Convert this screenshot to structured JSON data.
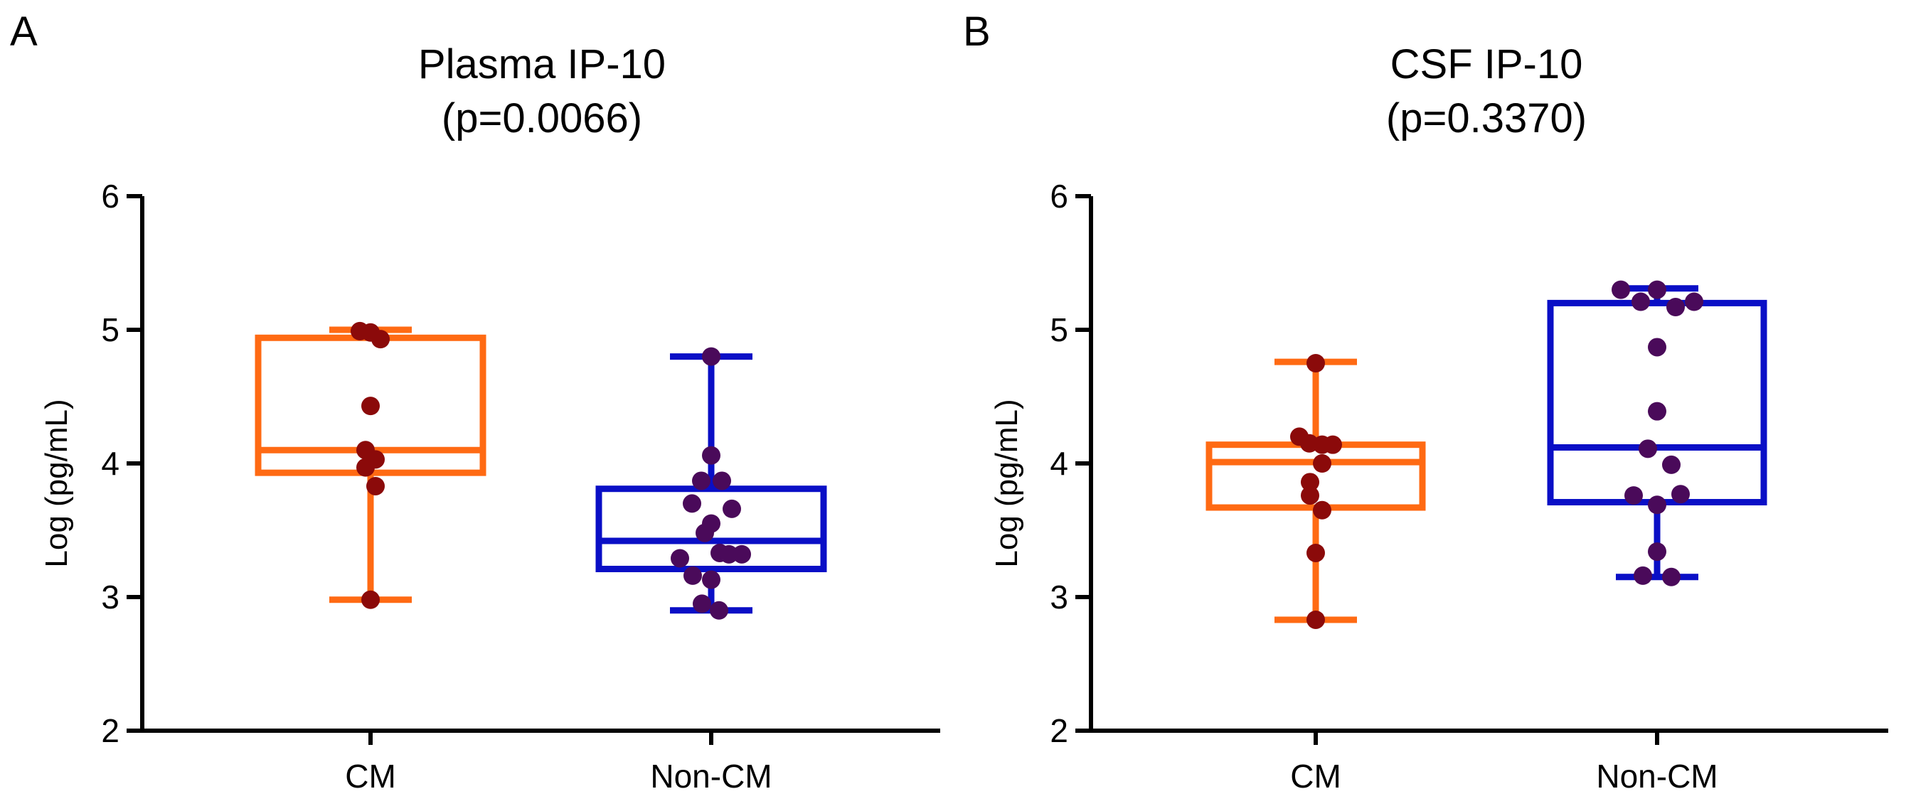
{
  "chart_data": [
    {
      "type": "box",
      "panel": "A",
      "title": "Plasma IP-10",
      "subtitle": "(p=0.0066)",
      "ylabel": "Log (pg/mL)",
      "ylim": [
        2,
        6
      ],
      "yticks": [
        "2",
        "3",
        "4",
        "5",
        "6"
      ],
      "categories": [
        "CM",
        "Non-CM"
      ],
      "colors": {
        "CM": "#ff6a13",
        "Non-CM": "#0a0fc6",
        "CM_points": "#8b0a0a",
        "Non-CM_points": "#4a0a5a"
      },
      "boxes": [
        {
          "name": "CM",
          "min": 2.98,
          "q1": 3.93,
          "median": 4.1,
          "q3": 4.94,
          "max": 5.0,
          "points": [
            {
              "dx": -0.15,
              "y": 4.99
            },
            {
              "dx": 0.0,
              "y": 4.98
            },
            {
              "dx": 0.14,
              "y": 4.93
            },
            {
              "dx": 0.0,
              "y": 4.43
            },
            {
              "dx": -0.07,
              "y": 4.1
            },
            {
              "dx": -0.07,
              "y": 3.97
            },
            {
              "dx": 0.07,
              "y": 4.03
            },
            {
              "dx": 0.07,
              "y": 3.83
            },
            {
              "dx": 0.0,
              "y": 2.98
            }
          ]
        },
        {
          "name": "Non-CM",
          "min": 2.9,
          "q1": 3.21,
          "median": 3.42,
          "q3": 3.81,
          "max": 4.8,
          "points": [
            {
              "dx": 0.0,
              "y": 4.8
            },
            {
              "dx": 0.0,
              "y": 4.06
            },
            {
              "dx": -0.14,
              "y": 3.87
            },
            {
              "dx": 0.15,
              "y": 3.87
            },
            {
              "dx": -0.27,
              "y": 3.7
            },
            {
              "dx": 0.29,
              "y": 3.66
            },
            {
              "dx": 0.0,
              "y": 3.55
            },
            {
              "dx": -0.09,
              "y": 3.48
            },
            {
              "dx": 0.12,
              "y": 3.33
            },
            {
              "dx": 0.25,
              "y": 3.32
            },
            {
              "dx": 0.43,
              "y": 3.32
            },
            {
              "dx": -0.44,
              "y": 3.29
            },
            {
              "dx": -0.26,
              "y": 3.16
            },
            {
              "dx": 0.0,
              "y": 3.13
            },
            {
              "dx": -0.13,
              "y": 2.95
            },
            {
              "dx": 0.11,
              "y": 2.9
            }
          ]
        }
      ]
    },
    {
      "type": "box",
      "panel": "B",
      "title": "CSF IP-10",
      "subtitle": "(p=0.3370)",
      "ylabel": "Log (pg/mL)",
      "ylim": [
        2,
        6
      ],
      "yticks": [
        "2",
        "3",
        "4",
        "5",
        "6"
      ],
      "categories": [
        "CM",
        "Non-CM"
      ],
      "colors": {
        "CM": "#ff6a13",
        "Non-CM": "#0a0fc6",
        "CM_points": "#8b0a0a",
        "Non-CM_points": "#4a0a5a"
      },
      "boxes": [
        {
          "name": "CM",
          "min": 2.83,
          "q1": 3.67,
          "median": 4.01,
          "q3": 4.14,
          "max": 4.76,
          "points": [
            {
              "dx": 0.0,
              "y": 4.75
            },
            {
              "dx": -0.23,
              "y": 4.2
            },
            {
              "dx": -0.09,
              "y": 4.15
            },
            {
              "dx": 0.09,
              "y": 4.14
            },
            {
              "dx": 0.24,
              "y": 4.14
            },
            {
              "dx": 0.09,
              "y": 4.0
            },
            {
              "dx": -0.08,
              "y": 3.86
            },
            {
              "dx": -0.08,
              "y": 3.76
            },
            {
              "dx": 0.09,
              "y": 3.65
            },
            {
              "dx": 0.0,
              "y": 3.33
            },
            {
              "dx": 0.0,
              "y": 2.83
            }
          ]
        },
        {
          "name": "Non-CM",
          "min": 3.15,
          "q1": 3.71,
          "median": 4.12,
          "q3": 5.2,
          "max": 5.31,
          "points": [
            {
              "dx": -0.51,
              "y": 5.3
            },
            {
              "dx": 0.0,
              "y": 5.3
            },
            {
              "dx": -0.23,
              "y": 5.21
            },
            {
              "dx": 0.26,
              "y": 5.17
            },
            {
              "dx": 0.52,
              "y": 5.21
            },
            {
              "dx": 0.0,
              "y": 4.87
            },
            {
              "dx": 0.0,
              "y": 4.39
            },
            {
              "dx": -0.13,
              "y": 4.11
            },
            {
              "dx": 0.2,
              "y": 3.99
            },
            {
              "dx": -0.33,
              "y": 3.76
            },
            {
              "dx": 0.33,
              "y": 3.77
            },
            {
              "dx": 0.0,
              "y": 3.69
            },
            {
              "dx": 0.0,
              "y": 3.34
            },
            {
              "dx": -0.2,
              "y": 3.16
            },
            {
              "dx": 0.2,
              "y": 3.15
            }
          ]
        }
      ]
    }
  ]
}
